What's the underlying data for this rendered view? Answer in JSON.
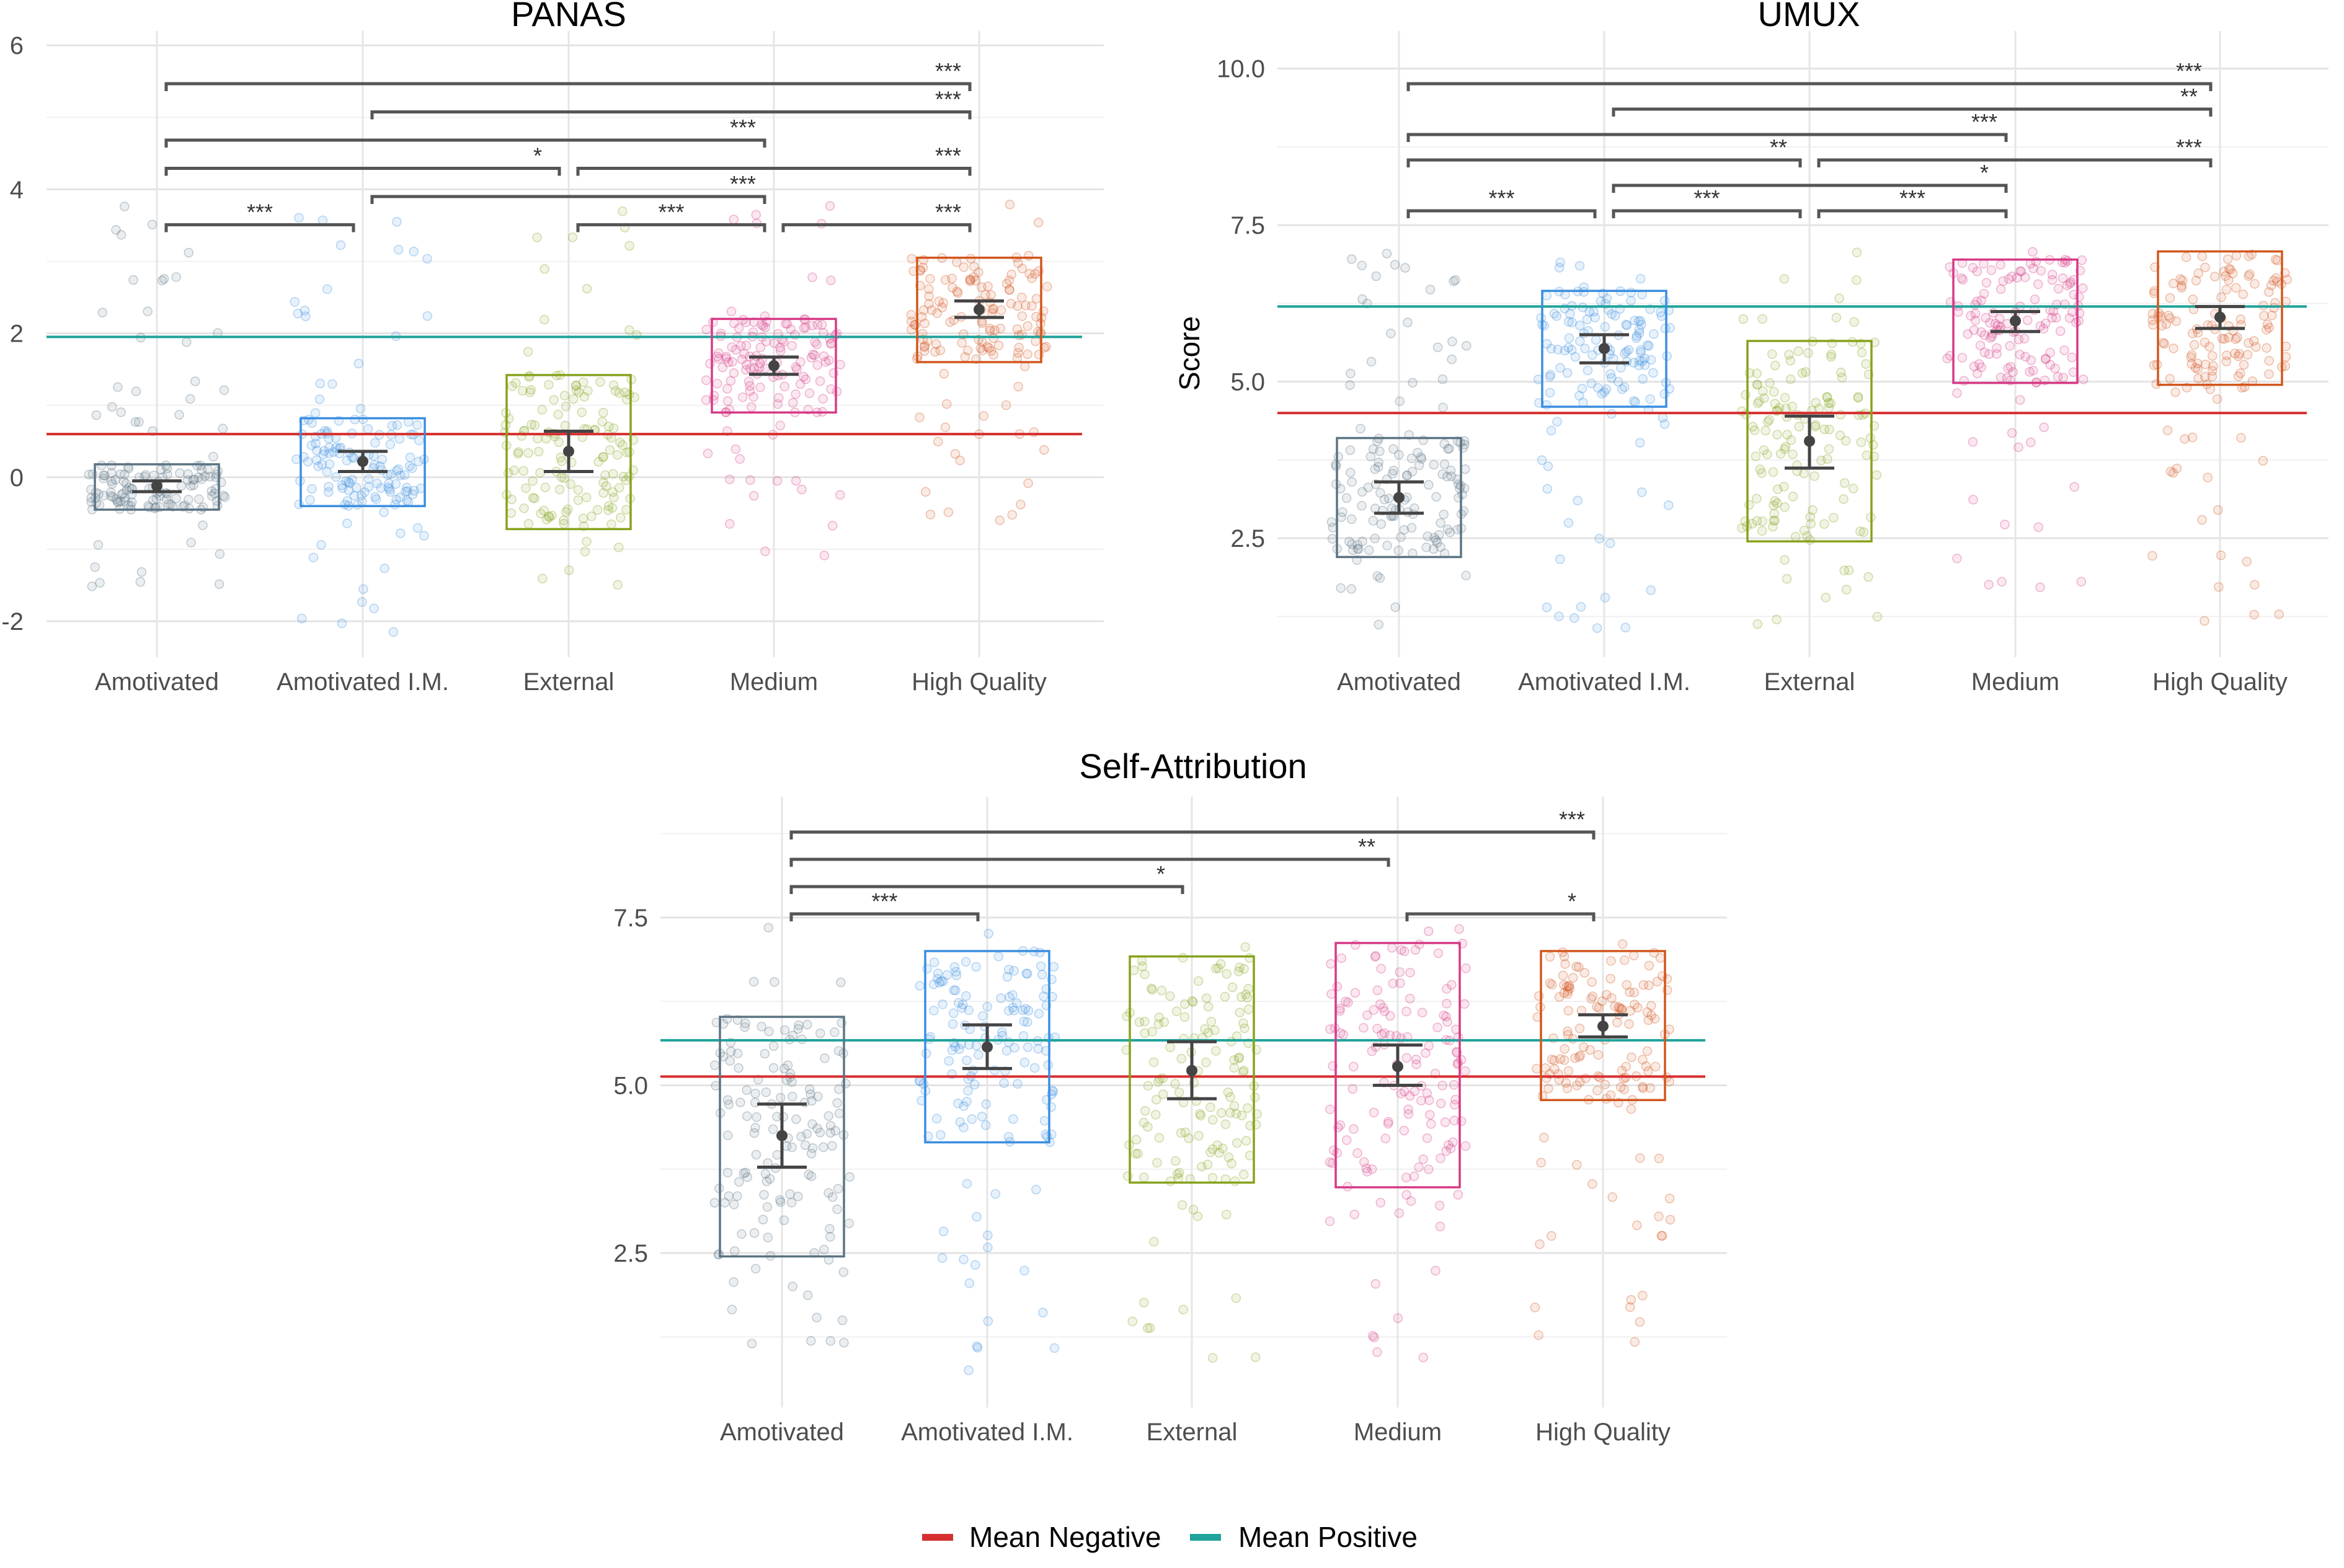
{
  "legend": {
    "items": [
      {
        "label": "Mean Negative",
        "color": "#d62f2f"
      },
      {
        "label": "Mean Positive",
        "color": "#1fa39a"
      }
    ]
  },
  "chart_data": [
    {
      "type": "boxplot",
      "title": "PANAS",
      "xlabel": "",
      "ylabel": "",
      "categories": [
        "Amotivated",
        "Amotivated I.M.",
        "External",
        "Medium",
        "High Quality"
      ],
      "colors": [
        "#5b7383",
        "#3a8ee0",
        "#86a21d",
        "#d63a86",
        "#d2561d"
      ],
      "ylim": [
        -2.5,
        6.2
      ],
      "yticks": [
        -2,
        0,
        2,
        4,
        6
      ],
      "ytick_labels": [
        "-2",
        "0",
        "2",
        "4",
        "6"
      ],
      "box_low": [
        -0.45,
        -0.4,
        -0.72,
        0.9,
        1.6
      ],
      "box_high": [
        0.18,
        0.82,
        1.42,
        2.2,
        3.05
      ],
      "mean": [
        -0.12,
        0.22,
        0.36,
        1.55,
        2.33
      ],
      "ci_low": [
        -0.2,
        0.08,
        0.08,
        1.43,
        2.22
      ],
      "ci_high": [
        -0.05,
        0.36,
        0.64,
        1.67,
        2.45
      ],
      "mean_negative": 0.6,
      "mean_positive": 1.95,
      "point_spread": [
        [
          -1.6,
          3.8
        ],
        [
          -2.2,
          3.8
        ],
        [
          -1.6,
          3.8
        ],
        [
          -1.2,
          3.8
        ],
        [
          -0.6,
          3.8
        ]
      ],
      "significance": [
        {
          "from": 0,
          "to": 4,
          "label": "***"
        },
        {
          "from": 0,
          "to": 3,
          "label": "***"
        },
        {
          "from": 1,
          "to": 4,
          "label": "***"
        },
        {
          "from": 1,
          "to": 3,
          "label": "***"
        },
        {
          "from": 0,
          "to": 2,
          "label": "*"
        },
        {
          "from": 2,
          "to": 4,
          "label": "***"
        },
        {
          "from": 0,
          "to": 1,
          "label": "***"
        },
        {
          "from": 2,
          "to": 3,
          "label": "***"
        },
        {
          "from": 3,
          "to": 4,
          "label": "***"
        }
      ]
    },
    {
      "type": "boxplot",
      "title": "UMUX",
      "xlabel": "",
      "ylabel": "Score",
      "categories": [
        "Amotivated",
        "Amotivated I.M.",
        "External",
        "Medium",
        "High Quality"
      ],
      "colors": [
        "#5b7383",
        "#3a8ee0",
        "#86a21d",
        "#d63a86",
        "#d2561d"
      ],
      "ylim": [
        0.6,
        10.6
      ],
      "yticks": [
        2.5,
        5.0,
        7.5,
        10.0
      ],
      "ytick_labels": [
        "2.5",
        "5.0",
        "7.5",
        "10.0"
      ],
      "box_low": [
        2.2,
        4.6,
        2.45,
        4.98,
        4.95
      ],
      "box_high": [
        4.1,
        6.45,
        5.65,
        6.95,
        7.08
      ],
      "mean": [
        3.15,
        5.53,
        4.05,
        5.97,
        6.03
      ],
      "ci_low": [
        2.9,
        5.3,
        3.62,
        5.8,
        5.85
      ],
      "ci_high": [
        3.4,
        5.75,
        4.45,
        6.12,
        6.2
      ],
      "mean_negative": 4.5,
      "mean_positive": 6.2,
      "point_spread": [
        [
          1.0,
          7.1
        ],
        [
          1.0,
          7.1
        ],
        [
          1.0,
          7.1
        ],
        [
          1.0,
          7.1
        ],
        [
          1.0,
          7.1
        ]
      ],
      "significance": [
        {
          "from": 0,
          "to": 4,
          "label": "***"
        },
        {
          "from": 0,
          "to": 3,
          "label": "***"
        },
        {
          "from": 1,
          "to": 4,
          "label": "**"
        },
        {
          "from": 1,
          "to": 3,
          "label": "*"
        },
        {
          "from": 0,
          "to": 2,
          "label": "**"
        },
        {
          "from": 2,
          "to": 4,
          "label": "***"
        },
        {
          "from": 0,
          "to": 1,
          "label": "***"
        },
        {
          "from": 1,
          "to": 2,
          "label": "***"
        },
        {
          "from": 2,
          "to": 3,
          "label": "***"
        }
      ]
    },
    {
      "type": "boxplot",
      "title": "Self-Attribution",
      "xlabel": "",
      "ylabel": "",
      "categories": [
        "Amotivated",
        "Amotivated I.M.",
        "External",
        "Medium",
        "High Quality"
      ],
      "colors": [
        "#5b7383",
        "#3a8ee0",
        "#86a21d",
        "#d63a86",
        "#d2561d"
      ],
      "ylim": [
        0.2,
        9.3
      ],
      "yticks": [
        2.5,
        5.0,
        7.5
      ],
      "ytick_labels": [
        "2.5",
        "5.0",
        "7.5"
      ],
      "box_low": [
        2.45,
        4.15,
        3.55,
        3.48,
        4.78
      ],
      "box_high": [
        6.02,
        7.0,
        6.92,
        7.12,
        7.0
      ],
      "mean": [
        4.25,
        5.57,
        5.22,
        5.28,
        5.88
      ],
      "ci_low": [
        3.78,
        5.25,
        4.8,
        5.0,
        5.72
      ],
      "ci_high": [
        4.72,
        5.9,
        5.65,
        5.6,
        6.05
      ],
      "mean_negative": 5.13,
      "mean_positive": 5.67,
      "point_spread": [
        [
          1.0,
          7.4
        ],
        [
          0.7,
          7.4
        ],
        [
          0.7,
          7.4
        ],
        [
          0.7,
          7.4
        ],
        [
          0.8,
          7.4
        ]
      ],
      "significance": [
        {
          "from": 0,
          "to": 4,
          "label": "***"
        },
        {
          "from": 0,
          "to": 3,
          "label": "**"
        },
        {
          "from": 0,
          "to": 2,
          "label": "*"
        },
        {
          "from": 0,
          "to": 1,
          "label": "***"
        },
        {
          "from": 3,
          "to": 4,
          "label": "*"
        }
      ]
    }
  ]
}
